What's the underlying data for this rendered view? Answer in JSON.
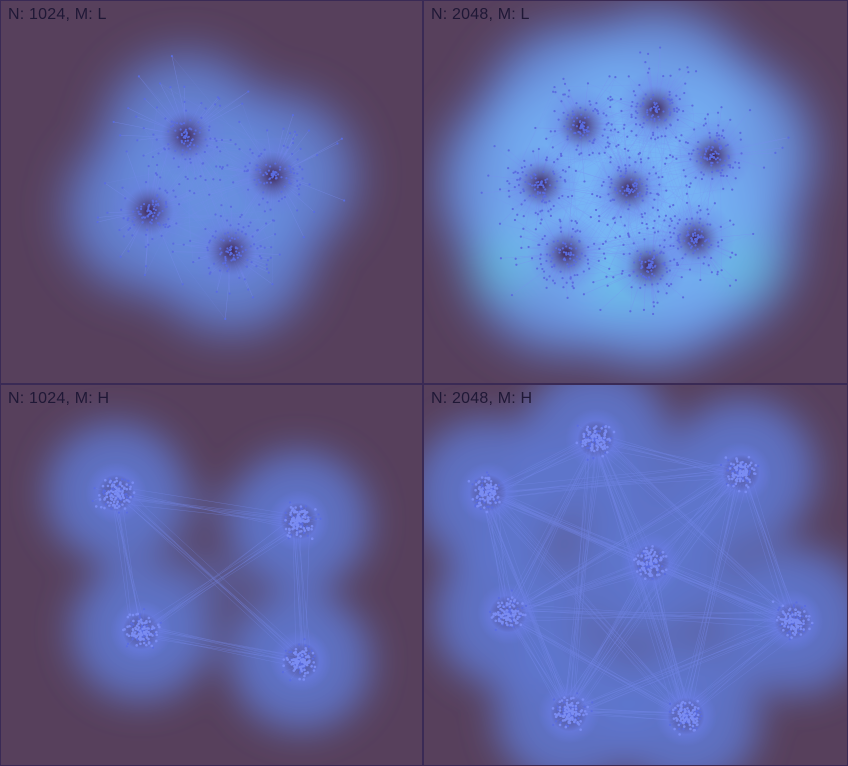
{
  "panels": [
    {
      "label": "N: 1024, M: L",
      "nodes": 1024,
      "mode": "L"
    },
    {
      "label": "N: 2048, M: L",
      "nodes": 2048,
      "mode": "L"
    },
    {
      "label": "N: 1024, M: H",
      "nodes": 1024,
      "mode": "H"
    },
    {
      "label": "N: 2048, M: H",
      "nodes": 2048,
      "mode": "H"
    }
  ],
  "colors": {
    "background": "#57405c",
    "halo_outer": "#5f78d2",
    "halo_inner": "#78b8f8",
    "halo_hot": "#5ce0d8",
    "edge": "#7a8cf2",
    "node": "#5a6ce0",
    "cluster_core_dark": "#3a1f46",
    "cluster_core_light": "#6a7ce6",
    "border": "#3a2a55",
    "label_text": "#1f1836"
  }
}
